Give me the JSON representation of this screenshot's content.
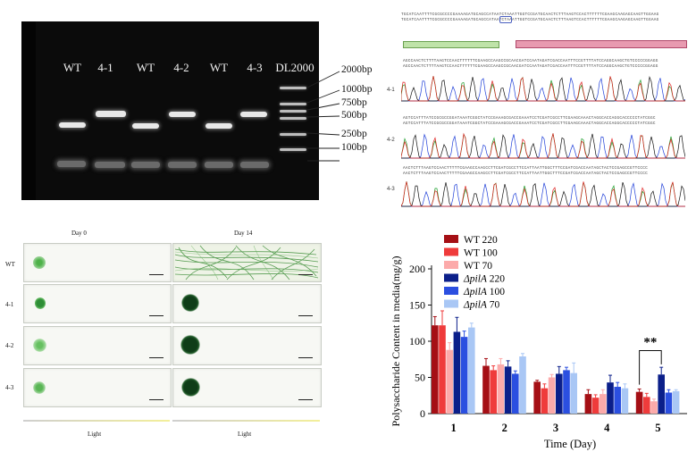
{
  "gel": {
    "lanes": [
      "WT",
      "4-1",
      "WT",
      "4-2",
      "WT",
      "4-3",
      "DL2000"
    ],
    "markers": [
      "2000bp",
      "1000bp",
      "750bp",
      "500bp",
      "250bp",
      "100bp"
    ]
  },
  "sequencing": {
    "rows": [
      "4-1",
      "4-2",
      "4-3"
    ],
    "seq_top": "TGCATCAATTTTCGCGCCCCGAAAAGATGCAGCCATAATCTAAATTGGTCCGATGCAACTCTTTAAGTCCACTTTTTTCGAAGCAAGAGCAAGTTGGAAG",
    "seq_row1": "AGCCAACTCTTTTAAGTCCAACTTTTTTCGAAGCCAAGCCGCAACGATCCAATAGATCGACCAATTTCCGTTTTATCCAGGCAAGCTGTCCCCCGGAGG",
    "seq_row2": "AGTCCATTTATCCGCGCCGGATAAATCGGCTATCCGAAAGCGACCGAAATCCTCGATCGCCTTCGAAGCAAACTAGGCACCAGGCACCCCCTATCGGC",
    "seq_row3": "AACTCTTTAAGTCCAACTTTTTCGAAGCCAAGCCTTCGATCGCCTTCCATTAATTGGCTTTCCGATCGACCAATAGCTACTCCGAGCCGTTCCCC"
  },
  "plates": {
    "days": [
      "Day 0",
      "Day 14"
    ],
    "rows": [
      "WT",
      "4-1",
      "4-2",
      "4-3"
    ],
    "light": [
      "Light",
      "Light"
    ]
  },
  "chart_data": {
    "type": "bar",
    "ylabel": "Polysaccharide Content in media(mg/g)",
    "xlabel": "Time (Day)",
    "categories": [
      "1",
      "2",
      "3",
      "4",
      "5"
    ],
    "ylim": [
      0,
      200
    ],
    "yticks": [
      0,
      50,
      100,
      150,
      200
    ],
    "legend_position": "top-left",
    "annotation": "**",
    "series": [
      {
        "name_prefix": "",
        "name": "WT 220",
        "color": "#a50f15",
        "values": [
          122,
          66,
          44,
          27,
          30
        ],
        "errors": [
          12,
          10,
          2,
          6,
          4
        ]
      },
      {
        "name_prefix": "",
        "name": "WT 100",
        "color": "#ef3b3b",
        "values": [
          122,
          60,
          35,
          22,
          23
        ],
        "errors": [
          20,
          6,
          6,
          4,
          5
        ]
      },
      {
        "name_prefix": "",
        "name": "WT 70",
        "color": "#fcaaaa",
        "values": [
          88,
          68,
          50,
          27,
          17
        ],
        "errors": [
          10,
          8,
          4,
          6,
          3
        ]
      },
      {
        "name_prefix": "Δ",
        "name": "pilA 220",
        "color": "#0b1f8a",
        "values": [
          113,
          65,
          55,
          43,
          54
        ],
        "errors": [
          20,
          8,
          10,
          10,
          10
        ]
      },
      {
        "name_prefix": "Δ",
        "name": "pilA 100",
        "color": "#2b4fe0",
        "values": [
          106,
          55,
          60,
          37,
          29
        ],
        "errors": [
          8,
          4,
          4,
          6,
          4
        ]
      },
      {
        "name_prefix": "Δ",
        "name": "pilA 70",
        "color": "#a9c7f5",
        "values": [
          119,
          79,
          56,
          35,
          31
        ],
        "errors": [
          6,
          4,
          14,
          6,
          2
        ]
      }
    ]
  }
}
